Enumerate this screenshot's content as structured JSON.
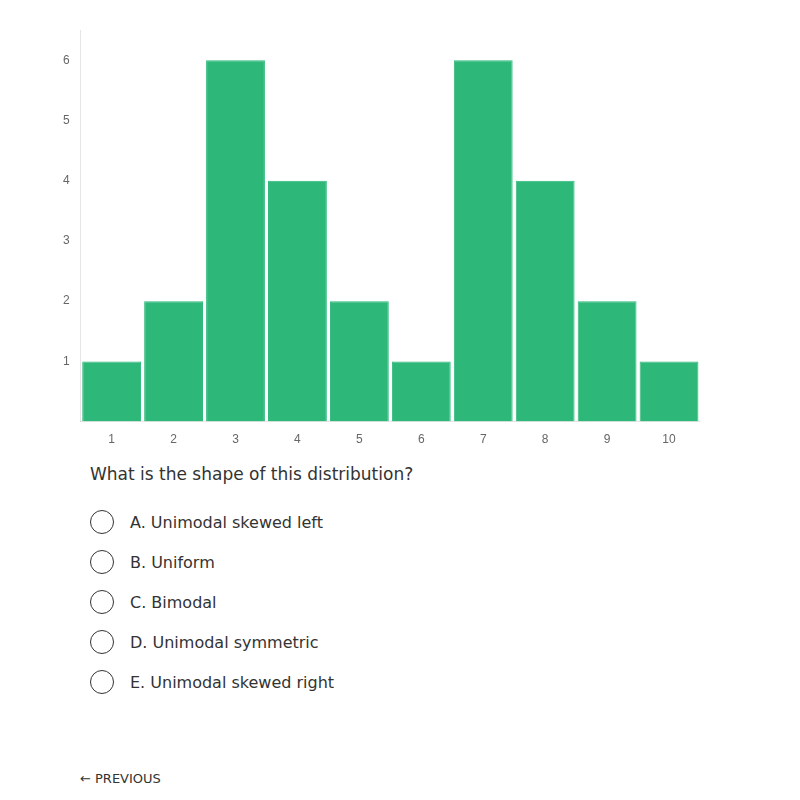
{
  "chart_data": {
    "type": "bar",
    "x": [
      1,
      2,
      3,
      4,
      5,
      6,
      7,
      8,
      9,
      10
    ],
    "values": [
      1,
      2,
      6,
      4,
      2,
      1,
      6,
      4,
      2,
      1
    ],
    "color": "#2db87a",
    "xlim": [
      0.5,
      10.5
    ],
    "xticks": [
      1,
      2,
      3,
      4,
      5,
      6,
      7,
      8,
      9,
      10
    ],
    "ylim": [
      0,
      6.5
    ],
    "yticks": [
      1,
      2,
      3,
      4,
      5,
      6
    ],
    "grid": false,
    "annotations": [
      "What is the shape of this distribution?",
      "A. Unimodal skewed left",
      "B. Uniform",
      "C. Bimodal",
      "D. Unimodal symmetric",
      "E. Unimodal skewed right",
      "← PREVIOUS"
    ]
  }
}
